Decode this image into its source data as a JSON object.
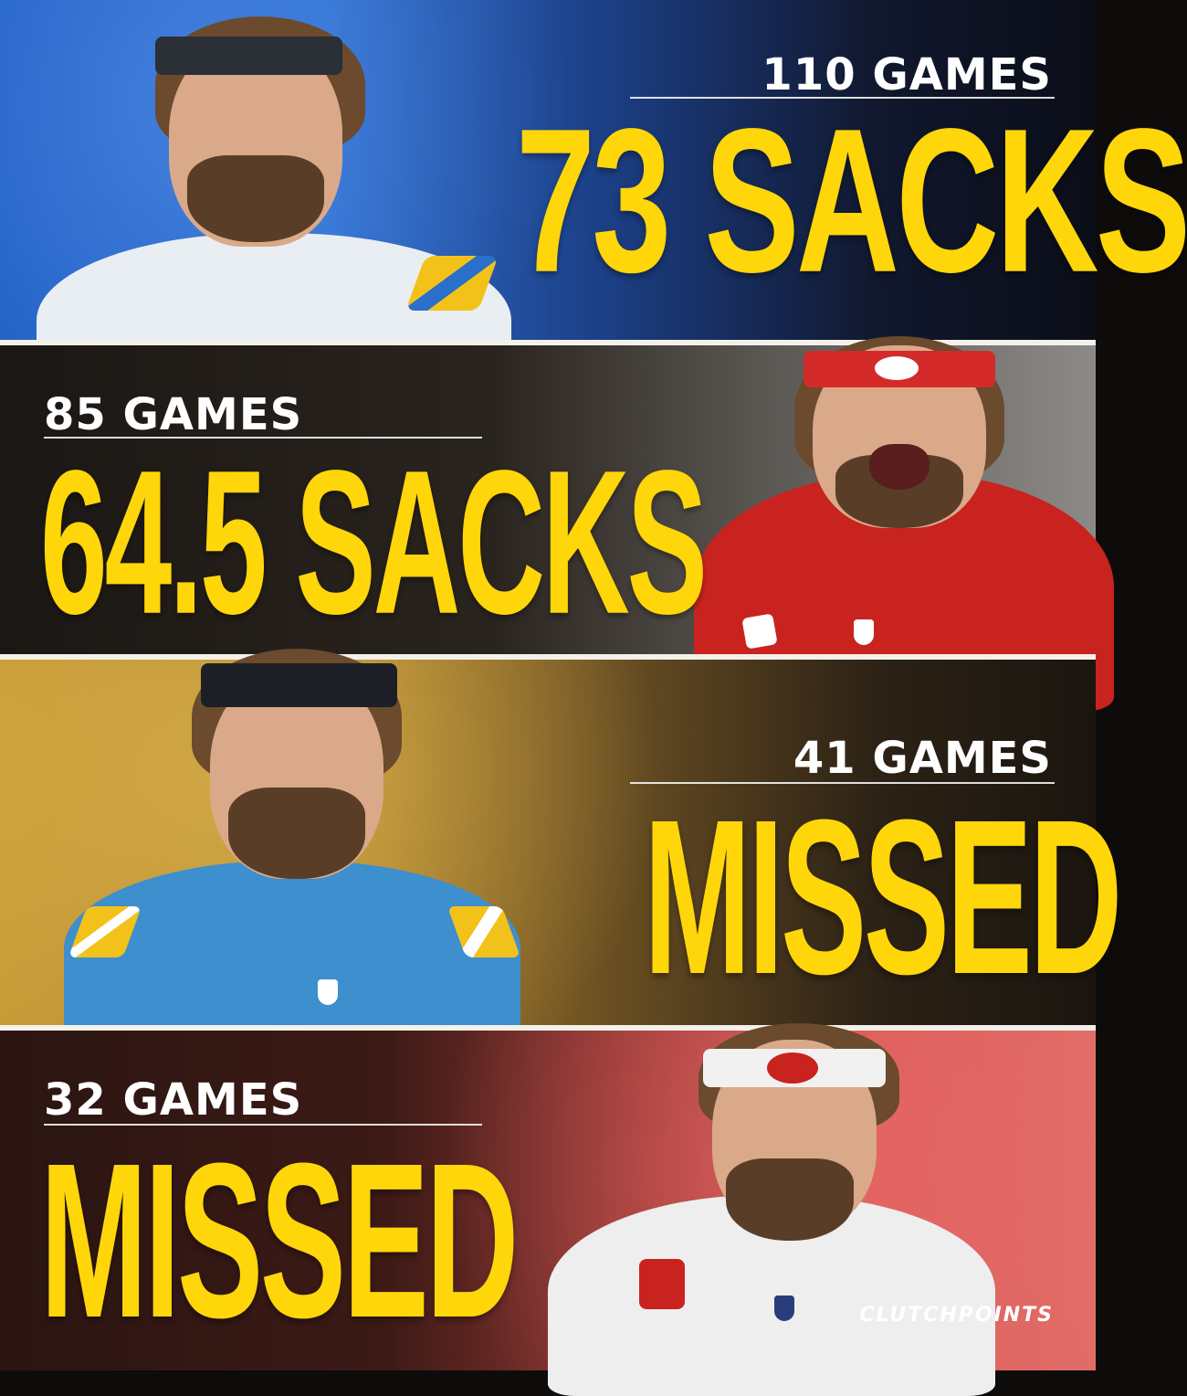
{
  "panels": [
    {
      "games_label": "110 GAMES",
      "big_label": "73 SACKS"
    },
    {
      "games_label": "85 GAMES",
      "big_label": "64.5 SACKS"
    },
    {
      "games_label": "41 GAMES",
      "big_label": "MISSED"
    },
    {
      "games_label": "32 GAMES",
      "big_label": "MISSED"
    }
  ],
  "watermark": "CLUTCHPOINTS",
  "colors": {
    "accent_yellow": "#ffd60a",
    "chargers_blue": "#2d6fd0",
    "niners_red": "#c8231f",
    "divider": "#f3f1ea"
  },
  "icons": [
    "chargers-bolt-icon",
    "49ers-logo-icon",
    "nfl-shield-icon"
  ]
}
